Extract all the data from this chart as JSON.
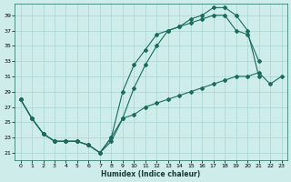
{
  "xlabel": "Humidex (Indice chaleur)",
  "bg_color": "#cdecea",
  "grid_color": "#a8d5d0",
  "line_color": "#1a6b5e",
  "xlim": [
    -0.5,
    23.5
  ],
  "ylim": [
    20.0,
    40.5
  ],
  "yticks": [
    21,
    23,
    25,
    27,
    29,
    31,
    33,
    35,
    37,
    39
  ],
  "xticks": [
    0,
    1,
    2,
    3,
    4,
    5,
    6,
    7,
    8,
    9,
    10,
    11,
    12,
    13,
    14,
    15,
    16,
    17,
    18,
    19,
    20,
    21,
    22,
    23
  ],
  "line1_x": [
    0,
    1,
    2,
    3,
    4,
    5,
    6,
    7,
    8,
    9,
    10,
    11,
    12,
    13,
    14,
    15,
    16,
    17,
    18,
    19,
    20,
    21
  ],
  "line1_y": [
    28,
    25.5,
    23.5,
    22.5,
    22.5,
    22.5,
    22,
    21,
    23,
    29,
    32.5,
    34.5,
    36.5,
    37,
    37.5,
    38.5,
    39,
    40,
    40,
    39,
    37,
    31
  ],
  "line2_x": [
    0,
    1,
    2,
    3,
    4,
    5,
    6,
    7,
    8,
    9,
    10,
    11,
    12,
    13,
    14,
    15,
    16,
    17,
    18,
    19,
    20,
    21
  ],
  "line2_y": [
    28,
    25.5,
    23.5,
    22.5,
    22.5,
    22.5,
    22,
    21,
    23,
    25.5,
    29.5,
    32.5,
    35,
    37,
    37.5,
    38,
    38.5,
    39,
    39,
    37,
    36.5,
    33
  ],
  "line3_x": [
    0,
    1,
    2,
    3,
    4,
    5,
    6,
    7,
    8,
    9,
    10,
    11,
    12,
    13,
    14,
    15,
    16,
    17,
    18,
    19,
    20,
    21,
    22,
    23
  ],
  "line3_y": [
    28,
    25.5,
    23.5,
    22.5,
    22.5,
    22.5,
    22,
    21,
    22.5,
    25.5,
    26,
    27,
    27.5,
    28,
    28.5,
    29,
    29.5,
    30,
    30.5,
    31,
    31,
    31.5,
    30,
    31
  ]
}
